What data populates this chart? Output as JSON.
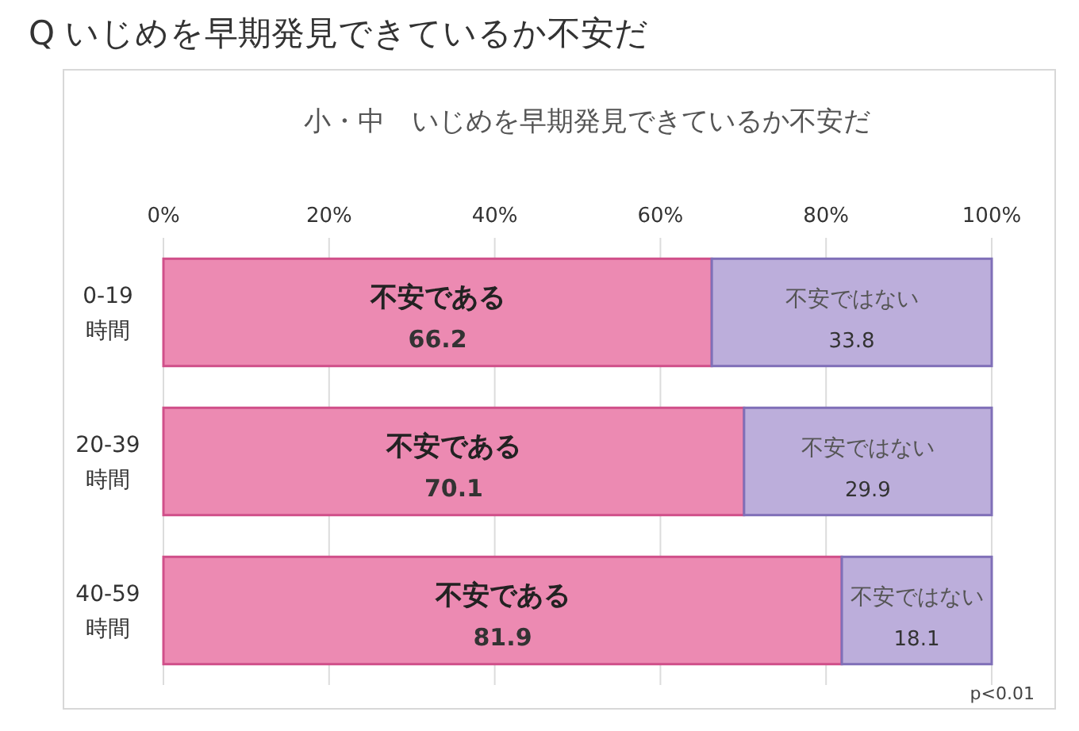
{
  "chart_data": {
    "type": "bar",
    "orientation": "horizontal",
    "stacked": true,
    "title": "Q いじめを早期発見できているか不安だ",
    "subtitle": "小・中　いじめを早期発見できているか不安だ",
    "categories": [
      "0-19\n時間",
      "20-39\n時間",
      "40-59\n時間"
    ],
    "series": [
      {
        "name": "不安である",
        "color": "#ec8ab2",
        "values": [
          66.2,
          70.1,
          81.9
        ]
      },
      {
        "name": "不安ではない",
        "color": "#bcaedb",
        "values": [
          33.8,
          29.9,
          18.1
        ]
      }
    ],
    "xlim": [
      0,
      100
    ],
    "xticks": [
      {
        "value": 0,
        "label": "0%"
      },
      {
        "value": 20,
        "label": "20%"
      },
      {
        "value": 40,
        "label": "40%"
      },
      {
        "value": 60,
        "label": "60%"
      },
      {
        "value": 80,
        "label": "80%"
      },
      {
        "value": 100,
        "label": "100%"
      }
    ],
    "grid": "x",
    "data_labels": true,
    "annotations": [
      "p<0.01"
    ]
  }
}
